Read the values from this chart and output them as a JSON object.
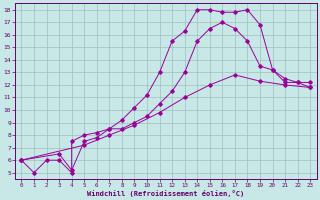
{
  "xlabel": "Windchill (Refroidissement éolien,°C)",
  "bg_color": "#c8e8e8",
  "line_color": "#990099",
  "grid_color": "#b0c8c8",
  "xlim": [
    -0.5,
    23.5
  ],
  "ylim": [
    4.5,
    18.5
  ],
  "xticks": [
    0,
    1,
    2,
    3,
    4,
    5,
    6,
    7,
    8,
    9,
    10,
    11,
    12,
    13,
    14,
    15,
    16,
    17,
    18,
    19,
    20,
    21,
    22,
    23
  ],
  "yticks": [
    5,
    6,
    7,
    8,
    9,
    10,
    11,
    12,
    13,
    14,
    15,
    16,
    17,
    18
  ],
  "line1_x": [
    0,
    1,
    2,
    3,
    4,
    4,
    5,
    6,
    7,
    8,
    9,
    10,
    11,
    12,
    13,
    14,
    15,
    16,
    17,
    18,
    19,
    20,
    21,
    22,
    23
  ],
  "line1_y": [
    6,
    5,
    6,
    6,
    5,
    7.5,
    8,
    8.2,
    8.5,
    9.2,
    10.2,
    11.2,
    13,
    15.5,
    16.3,
    18,
    18,
    17.8,
    17.8,
    18,
    16.8,
    13.2,
    12.2,
    12.2,
    11.8
  ],
  "line2_x": [
    0,
    3,
    4,
    5,
    6,
    7,
    8,
    9,
    10,
    11,
    12,
    13,
    14,
    15,
    16,
    17,
    18,
    19,
    20,
    21,
    22,
    23
  ],
  "line2_y": [
    6,
    6.5,
    5.2,
    7.5,
    7.8,
    8.5,
    8.5,
    9,
    9.5,
    10.5,
    11.5,
    13,
    15.5,
    16.5,
    17,
    16.5,
    15.5,
    13.5,
    13.2,
    12.5,
    12.2,
    12.2
  ],
  "line3_x": [
    0,
    5,
    7,
    9,
    11,
    13,
    15,
    17,
    19,
    21,
    23
  ],
  "line3_y": [
    6,
    7.2,
    8.0,
    8.8,
    9.8,
    11.0,
    12.0,
    12.8,
    12.3,
    12.0,
    11.8
  ]
}
